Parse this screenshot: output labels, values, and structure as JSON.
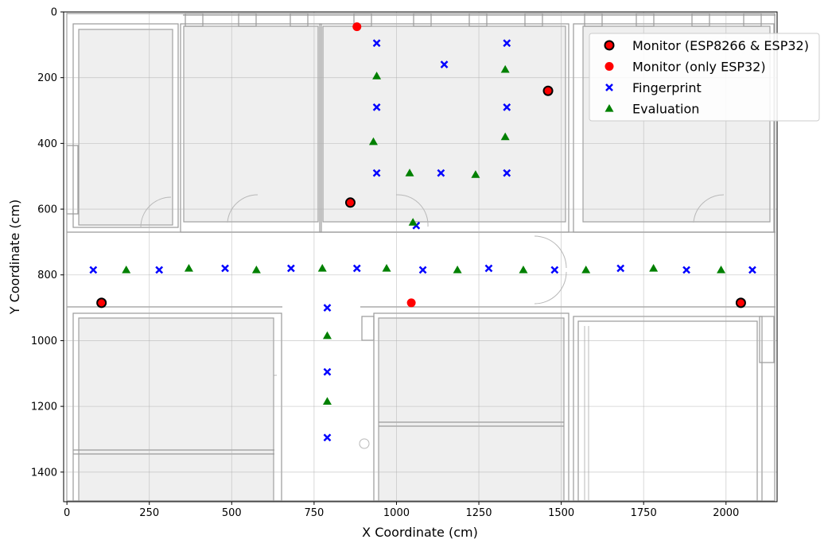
{
  "chart_data": {
    "type": "scatter",
    "xlabel": "X Coordinate (cm)",
    "ylabel": "Y Coordinate (cm)",
    "xlim": [
      -10,
      2155
    ],
    "ylim": [
      1490,
      0
    ],
    "y_inverted": true,
    "x_ticks": [
      0,
      250,
      500,
      750,
      1000,
      1250,
      1500,
      1750,
      2000
    ],
    "y_ticks": [
      0,
      200,
      400,
      600,
      800,
      1000,
      1200,
      1400
    ],
    "grid": true,
    "legend_position": "top-right",
    "background": "floor plan",
    "series": [
      {
        "name": "Monitor (ESP8266 & ESP32)",
        "marker": "circle-outlined",
        "color": "#ff0000",
        "edge_color": "#000000",
        "points": [
          [
            860,
            580
          ],
          [
            1460,
            240
          ],
          [
            105,
            885
          ],
          [
            2045,
            885
          ]
        ]
      },
      {
        "name": "Monitor (only ESP32)",
        "marker": "circle",
        "color": "#ff0000",
        "points": [
          [
            880,
            45
          ],
          [
            1045,
            885
          ]
        ]
      },
      {
        "name": "Fingerprint",
        "marker": "x",
        "color": "#0000ff",
        "points": [
          [
            940,
            95
          ],
          [
            1335,
            95
          ],
          [
            1145,
            160
          ],
          [
            940,
            290
          ],
          [
            1335,
            290
          ],
          [
            940,
            490
          ],
          [
            1135,
            490
          ],
          [
            1335,
            490
          ],
          [
            1060,
            650
          ],
          [
            80,
            785
          ],
          [
            280,
            785
          ],
          [
            480,
            780
          ],
          [
            680,
            780
          ],
          [
            880,
            780
          ],
          [
            1080,
            785
          ],
          [
            1280,
            780
          ],
          [
            1480,
            785
          ],
          [
            1680,
            780
          ],
          [
            1880,
            785
          ],
          [
            2080,
            785
          ],
          [
            790,
            900
          ],
          [
            790,
            1095
          ],
          [
            790,
            1295
          ]
        ]
      },
      {
        "name": "Evaluation",
        "marker": "triangle",
        "color": "#008000",
        "points": [
          [
            940,
            195
          ],
          [
            1330,
            175
          ],
          [
            930,
            395
          ],
          [
            1330,
            380
          ],
          [
            1040,
            490
          ],
          [
            1240,
            495
          ],
          [
            1050,
            640
          ],
          [
            180,
            785
          ],
          [
            370,
            780
          ],
          [
            575,
            785
          ],
          [
            775,
            780
          ],
          [
            970,
            780
          ],
          [
            1185,
            785
          ],
          [
            1385,
            785
          ],
          [
            1575,
            785
          ],
          [
            1780,
            780
          ],
          [
            1985,
            785
          ],
          [
            790,
            985
          ],
          [
            790,
            1185
          ]
        ]
      }
    ]
  }
}
